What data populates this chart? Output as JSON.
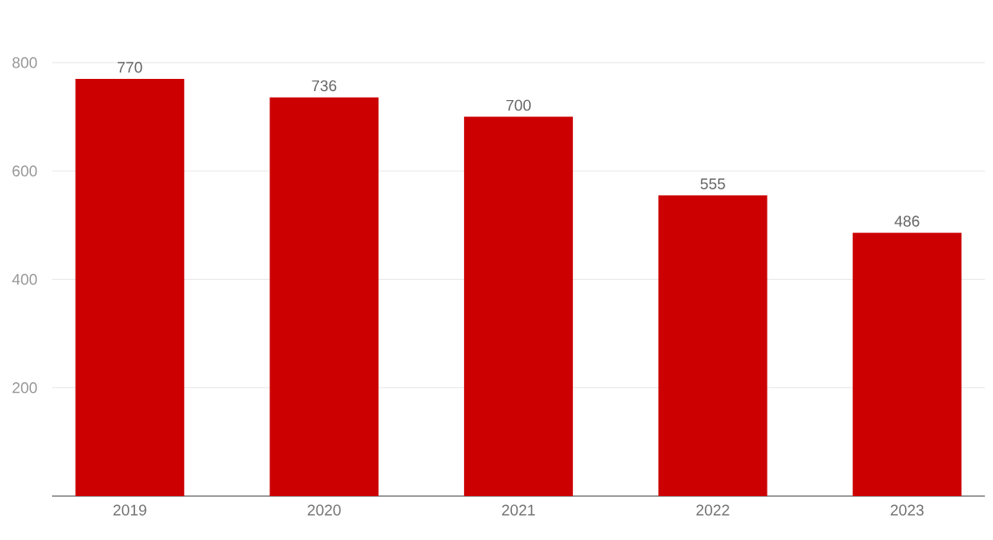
{
  "chart_data": {
    "type": "bar",
    "categories": [
      "2019",
      "2020",
      "2021",
      "2022",
      "2023"
    ],
    "values": [
      770,
      736,
      700,
      555,
      486
    ],
    "color": "#cc0000",
    "ylim": [
      0,
      800
    ],
    "yticks": [
      200,
      400,
      600,
      800
    ],
    "grid": "y",
    "data_labels": true
  }
}
